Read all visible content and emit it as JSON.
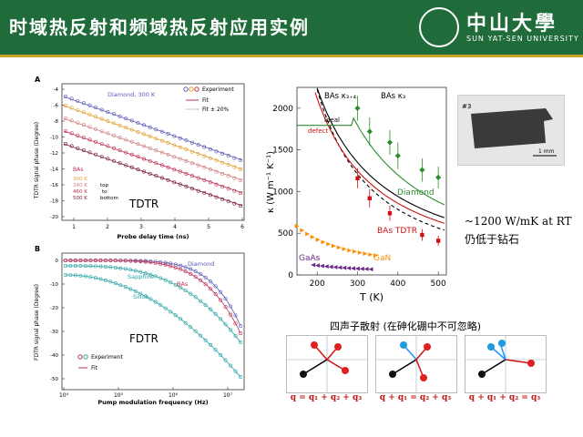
{
  "header": {
    "title": "时域热反射和频域热反射应用实例",
    "logo_cn": "中山大學",
    "logo_en": "SUN YAT-SEN UNIVERSITY",
    "seal_text": "中山大學"
  },
  "panel_a": {
    "letter": "A",
    "ylabel": "TDTR signal phase (Degree)",
    "xlabel": "Probe delay time (ns)",
    "diamond_label": "Diamond, 300 K",
    "legend_experiment": "Experiment",
    "legend_fit": "Fit",
    "legend_fit20": "Fit ± 20%",
    "bas_label": "BAs",
    "temps": [
      "300 K",
      "340 K",
      "460 K",
      "500 K"
    ],
    "order_note": "top\nto\nbottom",
    "method": "TDTR",
    "xticks": [
      "1",
      "2",
      "3",
      "4",
      "5",
      "6"
    ],
    "yticks": [
      "-4",
      "-6",
      "-8",
      "-10",
      "-12",
      "-14",
      "-16",
      "-18",
      "-20"
    ]
  },
  "panel_b": {
    "letter": "B",
    "ylabel": "FDTR signal phase (Degree)",
    "xlabel": "Pump modulation frequency (Hz)",
    "diamond_label": "Diamond",
    "bas_label": "BAs",
    "sapphire_label": "Sapphire",
    "silica_label": "Silica",
    "legend_experiment": "Experiment",
    "legend_fit": "Fit",
    "method": "FDTR",
    "yticks": [
      "0",
      "-10",
      "-20",
      "-30",
      "-40",
      "-50"
    ],
    "xticks": [
      "10⁴",
      "10⁵",
      "10⁶",
      "10⁷"
    ]
  },
  "panel_c": {
    "ylabel": "κ (W m⁻¹ K⁻¹)",
    "xlabel": "T (K)",
    "labels": {
      "bas34": "BAs κ₃₊₄",
      "bas3": "BAs κ₃",
      "ideal": "ideal",
      "defect": "defect",
      "diamond": "Diamond",
      "bas_tdtr": "BAs TDTR",
      "gan": "GaN",
      "gaas": "GaAs"
    },
    "yticks": [
      "0",
      "500",
      "1000",
      "1500",
      "2000"
    ],
    "xticks": [
      "200",
      "300",
      "400",
      "500"
    ]
  },
  "photo": {
    "label": "#3",
    "scale": "1 mm"
  },
  "notes": {
    "en": "~1200 W/mK  at RT",
    "cn": "仍低于钻石"
  },
  "phonon": {
    "title": "四声子散射 (在砷化硼中不可忽略)",
    "equations": [
      "q = q₁ + q₂ + q₃",
      "q + q₁ = q₂ + q₃",
      "q + q₁ + q₂ = q₃"
    ]
  },
  "colors": {
    "header_green": "#1f6b3a",
    "diamond_blue": "#5b5bb8",
    "bas300": "#e0a030",
    "bas340": "#d08080",
    "bas460": "#c03050",
    "bas500": "#7a1a3a",
    "sapphire": "#2aa3a3",
    "gan": "#ff8c00",
    "gaas": "#6a2a8a",
    "green_fit": "#2e8b2e",
    "red_fit": "#d01010"
  }
}
